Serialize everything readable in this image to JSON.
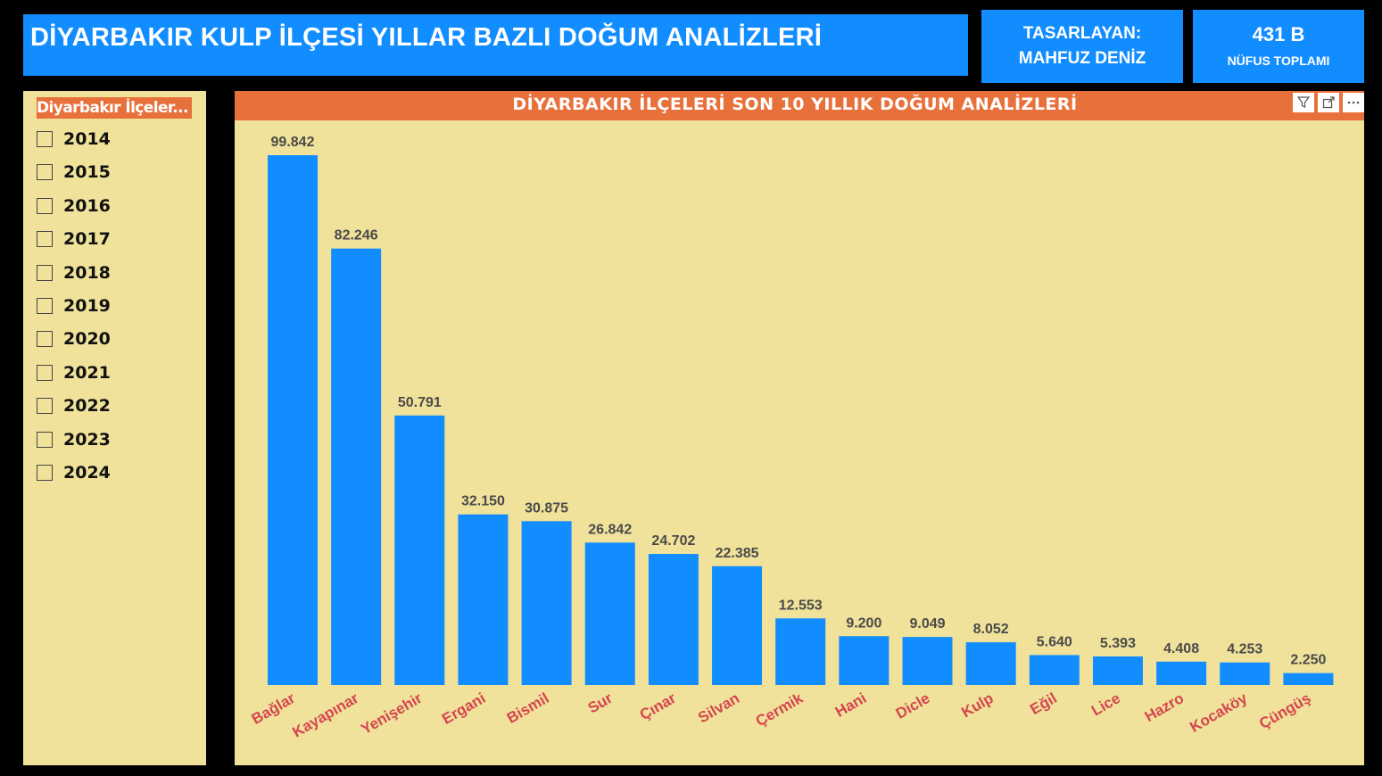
{
  "header": {
    "title": "DİYARBAKIR KULP İLÇESİ YILLAR BAZLI DOĞUM ANALİZLERİ",
    "author_label": "TASARLAYAN:",
    "author_name": "MAHFUZ DENİZ",
    "kpi_value": "431 B",
    "kpi_label": "NÜFUS TOPLAMI"
  },
  "slicer": {
    "title": "Diyarbakır İlçeler...",
    "items": [
      "2014",
      "2015",
      "2016",
      "2017",
      "2018",
      "2019",
      "2020",
      "2021",
      "2022",
      "2023",
      "2024"
    ]
  },
  "chart_toolbar": {
    "filter_icon": "filter-icon",
    "focus_icon": "focus-mode-icon",
    "more_icon": "more-options-icon"
  },
  "colors": {
    "bar": "#118DFF",
    "category_label": "#D64550",
    "panel": "#F0E29A",
    "header": "#E8703A",
    "title_box": "#118DFF"
  },
  "chart_data": {
    "type": "bar",
    "title": "DİYARBAKIR İLÇELERİ SON 10 YILLIK DOĞUM ANALİZLERİ",
    "categories": [
      "Bağlar",
      "Kayapınar",
      "Yenişehir",
      "Ergani",
      "Bismil",
      "Sur",
      "Çınar",
      "Silvan",
      "Çermik",
      "Hani",
      "Dicle",
      "Kulp",
      "Eğil",
      "Lice",
      "Hazro",
      "Kocaköy",
      "Çüngüş"
    ],
    "values": [
      99842,
      82246,
      50791,
      32150,
      30875,
      26842,
      24702,
      22385,
      12553,
      9200,
      9049,
      8052,
      5640,
      5393,
      4408,
      4253,
      2250
    ],
    "labels": [
      "99.842",
      "82.246",
      "50.791",
      "32.150",
      "30.875",
      "26.842",
      "24.702",
      "22.385",
      "12.553",
      "9.200",
      "9.049",
      "8.052",
      "5.640",
      "5.393",
      "4.408",
      "4.253",
      "2.250"
    ],
    "xlabel": "",
    "ylabel": "",
    "ylim": [
      0,
      100000
    ],
    "grid": false,
    "legend": "none"
  }
}
